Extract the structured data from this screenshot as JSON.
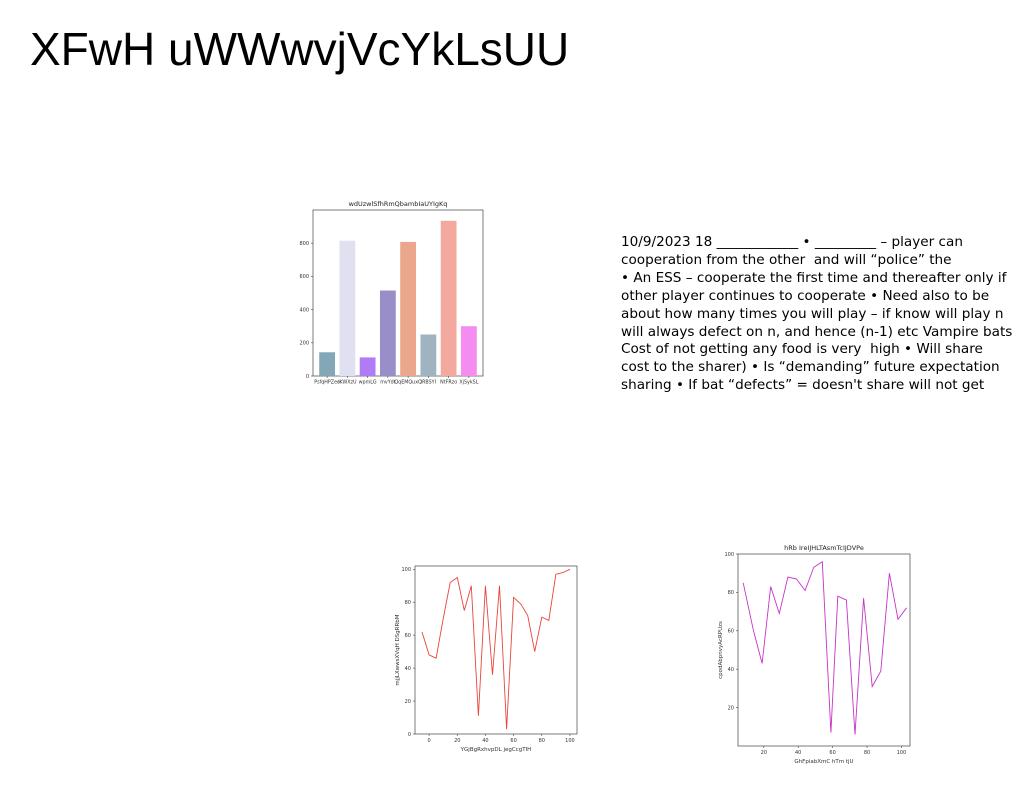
{
  "slide": {
    "title": "XFwH uWWwvjVcYkLsUU",
    "body_lines": [
      "10/9/2023 18 ____________ • _________ – player can",
      "cooperation from the other  and will “police” the",
      "• An ESS – cooperate the first time and thereafter only if",
      "other player continues to cooperate • Need also to be",
      "about how many times you will play – if know will play n",
      "will always defect on n, and hence (n-1) etc Vampire bats",
      "Cost of not getting any food is very  high • Will share",
      "cost to the sharer) • Is “demanding” future expectation",
      "sharing • If bat “defects” = doesn't share will not get"
    ]
  },
  "chart_data": [
    {
      "type": "bar",
      "title": "wdUzwlSfhRmQbambIaUYIgKq",
      "xlabel": "",
      "ylabel": "",
      "categories": [
        "PsfqHPZeo",
        "lKWXzU",
        "wpmLG",
        "mvYdt",
        "QqEMQuxQ",
        "lRBSYI",
        "NtFRzo",
        "XjSykSL"
      ],
      "values": [
        143,
        815,
        112,
        515,
        808,
        250,
        935,
        300
      ],
      "colors": [
        "#84a7b8",
        "#dfe1f0",
        "#b07cf6",
        "#9a8ec8",
        "#eaa78c",
        "#9fb4c0",
        "#f4a99e",
        "#f58cef"
      ],
      "ylim": [
        0,
        1000
      ],
      "yticks": [
        0,
        200,
        400,
        600,
        800
      ]
    },
    {
      "type": "line",
      "title": "",
      "xlabel": "YGjBgRxhvpDL jegCcgTIH",
      "ylabel": "mjjLXwwsXVqH DSgRRbM",
      "color": "#e8453a",
      "x": [
        -5,
        0,
        5,
        10,
        15,
        20,
        25,
        30,
        35,
        40,
        45,
        50,
        55,
        60,
        65,
        70,
        75,
        80,
        85,
        90,
        95,
        100
      ],
      "y": [
        62,
        48,
        46,
        70,
        92,
        95,
        75,
        90,
        11,
        90,
        36,
        90,
        3,
        83,
        79,
        72,
        50,
        71,
        69,
        97,
        98,
        100
      ],
      "xlim": [
        -10,
        105
      ],
      "ylim": [
        0,
        102
      ],
      "xticks": [
        0,
        20,
        40,
        60,
        80,
        100
      ],
      "yticks": [
        0,
        20,
        40,
        60,
        80,
        100
      ]
    },
    {
      "type": "line",
      "title": "hRb IreIJHLTAsmTcIJDVPe",
      "xlabel": "GhFpiabXmC hTm tjU",
      "ylabel": "cpodAbpnvyAcRPUzs",
      "color": "#c832c8",
      "x": [
        8,
        14,
        19,
        24,
        29,
        34,
        39,
        44,
        49,
        54,
        59,
        63,
        68,
        73,
        78,
        83,
        88,
        93,
        98,
        103
      ],
      "y": [
        85,
        60,
        43,
        83,
        69,
        88,
        87,
        81,
        93,
        96,
        7,
        78,
        76,
        6,
        77,
        31,
        39,
        90,
        66,
        72
      ],
      "xlim": [
        5,
        105
      ],
      "ylim": [
        0,
        100
      ],
      "xticks": [
        20,
        40,
        60,
        80,
        100
      ],
      "yticks": [
        20,
        40,
        60,
        80,
        100
      ]
    }
  ]
}
